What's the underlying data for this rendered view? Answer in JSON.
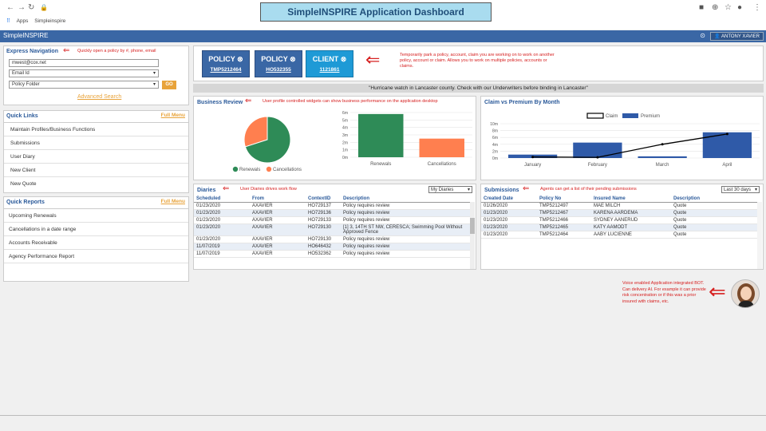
{
  "browser": {
    "apps": "Apps",
    "bookmark": "Simpleinspire"
  },
  "banner": "SimpleINSPIRE Application Dashboard",
  "app": {
    "brand": "SimpleINSPIRE",
    "user": "ANTONY XAVIER"
  },
  "express": {
    "title": "Express Navigation",
    "note": "Quickly open a policy by #, phone, email",
    "email_value": "mwest@cox.net",
    "select1": "Email Id",
    "select2": "Policy Folder",
    "go": "GO",
    "advanced": "Advanced Search"
  },
  "quick_links": {
    "title": "Quick Links",
    "full_menu": "Full Menu",
    "items": [
      "Maintain Profiles/Business Functions",
      "Submissions",
      "User Diary",
      "New Client",
      "New Quote"
    ]
  },
  "quick_reports": {
    "title": "Quick Reports",
    "full_menu": "Full Menu",
    "items": [
      "Upcoming Renewals",
      "Cancellations in a date range",
      "Accounts Receivable",
      "Agency Performance Report"
    ]
  },
  "tiles": [
    {
      "label": "POLICY",
      "value": "TMP5212464"
    },
    {
      "label": "POLICY",
      "value": "HO532355"
    },
    {
      "label": "CLIENT",
      "value": "1121861"
    }
  ],
  "park_note": "Temporarily park a policy, account, claim you are working on to work on another policy, account or claim. Allows you to work on multiple policies, accounts or claims.",
  "alert": "\"Hurricane watch in Lancaster county. Check with our Underwriters before binding in Lancaster\"",
  "business_review": {
    "title": "Business Review",
    "note": "User profile controlled widgets can show business performance on the application desktop"
  },
  "claim_premium": {
    "title": "Claim vs Premium By Month"
  },
  "diaries": {
    "title": "Diaries",
    "note": "User Diaries drives work flow",
    "filter": "My Diaries",
    "headers": [
      "Scheduled",
      "From",
      "ContextID",
      "Description"
    ],
    "rows": [
      [
        "01/23/2020",
        "AXAVIER",
        "HO729137",
        "Policy requires review"
      ],
      [
        "01/23/2020",
        "AXAVIER",
        "HO729136",
        "Policy requires review"
      ],
      [
        "01/23/2020",
        "AXAVIER",
        "HO729133",
        "Policy requires review"
      ],
      [
        "01/23/2020",
        "AXAVIER",
        "HO729130",
        "[1] 3, 14TH ST NW, CERESCA; Swimming Pool Without Approved Fence"
      ],
      [
        "01/23/2020",
        "AXAVIER",
        "HO729130",
        "Policy requires review"
      ],
      [
        "11/07/2019",
        "AXAVIER",
        "HO646432",
        "Policy requires review"
      ],
      [
        "11/07/2019",
        "AXAVIER",
        "HO532362",
        "Policy requires review"
      ]
    ]
  },
  "submissions": {
    "title": "Submissions",
    "note": "Agents can get a list of their pending submissions",
    "filter": "Last 30 days",
    "headers": [
      "Created Date",
      "Policy No",
      "Insured Name",
      "Description"
    ],
    "rows": [
      [
        "01/26/2020",
        "TMP5212497",
        "MAE MILCH",
        "Quote"
      ],
      [
        "01/23/2020",
        "TMP5212467",
        "KARENA AARDEMA",
        "Quote"
      ],
      [
        "01/23/2020",
        "TMP5212466",
        "SYDNEY AANERUD",
        "Quote"
      ],
      [
        "01/23/2020",
        "TMP5212465",
        "KATY AAMODT",
        "Quote"
      ],
      [
        "01/23/2020",
        "TMP5212464",
        "AABY LUCIENNE",
        "Quote"
      ]
    ]
  },
  "bot_note": "Voice enabled Application integrated BOT. Can delivery AI. For example it can provide risk concentration or if this was a prior insured with claims, etc.",
  "chart_data": [
    {
      "type": "pie",
      "categories": [
        "Renewals",
        "Cancellations"
      ],
      "values": [
        70,
        30
      ],
      "colors": [
        "#2e8b57",
        "#ff7f4f"
      ]
    },
    {
      "type": "bar",
      "categories": [
        "Renewals",
        "Cancellations"
      ],
      "values": [
        5.8,
        2.5
      ],
      "yticks": [
        "6m",
        "5m",
        "4m",
        "3m",
        "2m",
        "1m",
        "0m"
      ],
      "ylim": [
        0,
        6
      ],
      "colors": [
        "#2e8b57",
        "#ff7f4f"
      ]
    },
    {
      "type": "bar",
      "categories": [
        "January",
        "February",
        "March",
        "April"
      ],
      "series": [
        {
          "name": "Premium",
          "values": [
            1.0,
            4.5,
            0.5,
            7.5
          ]
        },
        {
          "name": "Claim",
          "values": [
            0.3,
            0.2,
            4.0,
            7.0
          ]
        }
      ],
      "yticks": [
        "10m",
        "8m",
        "6m",
        "4m",
        "2m",
        "0m"
      ],
      "ylim": [
        0,
        10
      ],
      "colors": [
        "#2f5aa8",
        "#000000"
      ]
    }
  ]
}
